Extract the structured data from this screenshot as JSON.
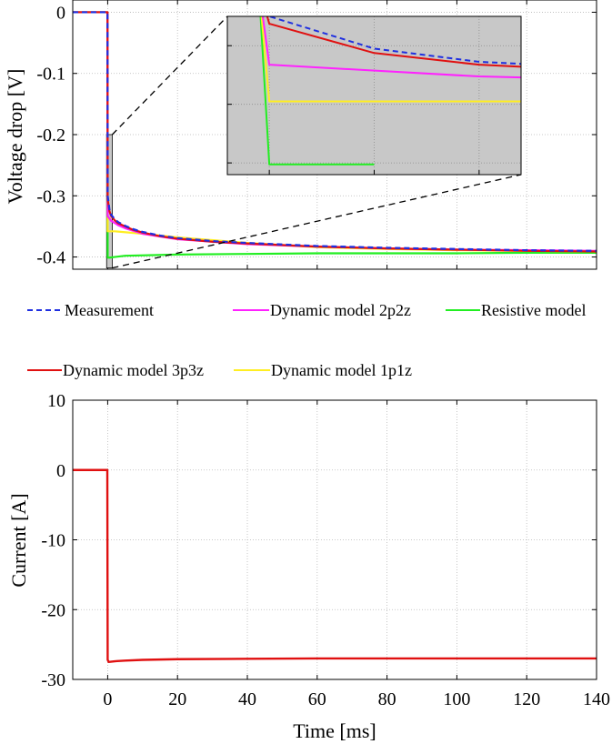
{
  "chart_data": [
    {
      "type": "line",
      "ylabel": "Voltage drop [V]",
      "xlim": [
        -10,
        140
      ],
      "ylim": [
        -0.42,
        0.02
      ],
      "xticks": [
        0,
        20,
        40,
        60,
        80,
        100,
        120,
        140
      ],
      "yticks": [
        0,
        -0.1,
        -0.2,
        -0.3,
        -0.4
      ],
      "ytick_labels": [
        "0",
        "-0.1",
        "-0.2",
        "-0.3",
        "-0.4"
      ],
      "grid": true,
      "series": [
        {
          "name": "Measurement",
          "color": "#1f2fe0",
          "dash": "dashed",
          "x": [
            -10,
            -0.05,
            0,
            0.5,
            1,
            2,
            3,
            5,
            7,
            10,
            15,
            20,
            30,
            40,
            60,
            80,
            100,
            120,
            140
          ],
          "y": [
            0,
            0,
            -0.3,
            -0.322,
            -0.331,
            -0.338,
            -0.343,
            -0.349,
            -0.354,
            -0.359,
            -0.365,
            -0.369,
            -0.374,
            -0.377,
            -0.382,
            -0.385,
            -0.387,
            -0.389,
            -0.39
          ]
        },
        {
          "name": "Dynamic model 3p3z",
          "color": "#e01010",
          "dash": "solid",
          "x": [
            -10,
            -0.05,
            0,
            0.5,
            1,
            2,
            3,
            5,
            7,
            10,
            15,
            20,
            30,
            40,
            60,
            80,
            100,
            120,
            140
          ],
          "y": [
            0,
            0,
            -0.305,
            -0.325,
            -0.333,
            -0.34,
            -0.345,
            -0.35,
            -0.355,
            -0.36,
            -0.366,
            -0.37,
            -0.375,
            -0.378,
            -0.383,
            -0.386,
            -0.388,
            -0.39,
            -0.391
          ]
        },
        {
          "name": "Dynamic model 2p2z",
          "color": "#ff22ff",
          "dash": "solid",
          "x": [
            -10,
            -0.05,
            0,
            1,
            3,
            5,
            10,
            20,
            40,
            60,
            80,
            100,
            120,
            140
          ],
          "y": [
            0,
            0,
            -0.333,
            -0.341,
            -0.348,
            -0.353,
            -0.362,
            -0.371,
            -0.379,
            -0.383,
            -0.386,
            -0.388,
            -0.389,
            -0.39
          ]
        },
        {
          "name": "Dynamic model 1p1z",
          "color": "#ffee22",
          "dash": "solid",
          "x": [
            -10,
            -0.05,
            0,
            2,
            10,
            20,
            40,
            60,
            80,
            100,
            120,
            140
          ],
          "y": [
            0,
            0,
            -0.358,
            -0.358,
            -0.362,
            -0.368,
            -0.377,
            -0.384,
            -0.387,
            -0.389,
            -0.39,
            -0.391
          ]
        },
        {
          "name": "Resistive model",
          "color": "#22ee22",
          "dash": "solid",
          "x": [
            -10,
            -0.05,
            0,
            0.5,
            5,
            20,
            40,
            60,
            80,
            100,
            120,
            140
          ],
          "y": [
            0,
            0,
            -0.401,
            -0.401,
            -0.398,
            -0.396,
            -0.395,
            -0.394,
            -0.394,
            -0.394,
            -0.393,
            -0.393
          ]
        }
      ],
      "zoom_box": {
        "x": [
          -0.3,
          1.3
        ],
        "y": [
          -0.418,
          -0.2
        ]
      }
    },
    {
      "type": "line",
      "xlabel": "Time [ms]",
      "ylabel": "Current [A]",
      "xlim": [
        -10,
        140
      ],
      "ylim": [
        -30,
        10
      ],
      "xticks": [
        0,
        20,
        40,
        60,
        80,
        100,
        120,
        140
      ],
      "yticks": [
        10,
        0,
        -10,
        -20,
        -30
      ],
      "grid": true,
      "series": [
        {
          "name": "Current",
          "color": "#e01010",
          "x": [
            -10,
            -0.1,
            0,
            0.3,
            2,
            5,
            10,
            20,
            40,
            60,
            80,
            100,
            120,
            140
          ],
          "y": [
            0,
            0,
            -27.2,
            -27.5,
            -27.4,
            -27.3,
            -27.2,
            -27.1,
            -27.05,
            -27.0,
            -27.0,
            -27.0,
            -27.0,
            -27.0
          ]
        }
      ]
    }
  ],
  "legend": {
    "row1": [
      "Measurement",
      "Dynamic model 2p2z",
      "Resistive model"
    ],
    "row2": [
      "Dynamic model 3p3z",
      "Dynamic model 1p1z"
    ]
  }
}
